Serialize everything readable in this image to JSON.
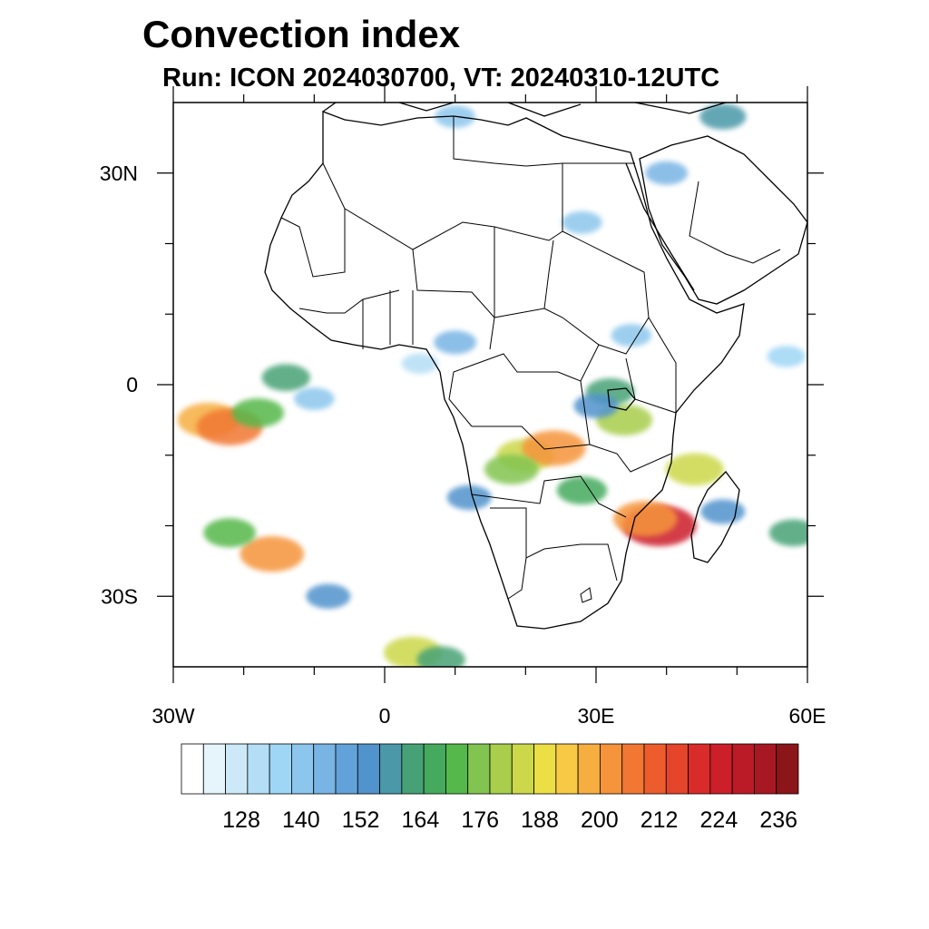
{
  "title": "Convection index",
  "subtitle": "Run: ICON 2024030700,  VT: 20240310-12UTC",
  "map": {
    "lon_range": [
      -30,
      60
    ],
    "lat_range": [
      -40,
      40
    ],
    "lon_ticks": [
      {
        "value": -30,
        "label": "30W"
      },
      {
        "value": 0,
        "label": "0"
      },
      {
        "value": 30,
        "label": "30E"
      },
      {
        "value": 60,
        "label": "60E"
      }
    ],
    "lat_ticks": [
      {
        "value": 30,
        "label": "30N"
      },
      {
        "value": 0,
        "label": "0"
      },
      {
        "value": -30,
        "label": "30S"
      }
    ],
    "minor_lon": [
      -20,
      -10,
      10,
      20,
      40,
      50
    ],
    "minor_lat": [
      20,
      10,
      -10,
      -20
    ]
  },
  "colorbar": {
    "colors": [
      "#ffffff",
      "#e6f4fc",
      "#cde9f8",
      "#b4def5",
      "#9fd6f6",
      "#8cc6ec",
      "#78b4e4",
      "#62a2da",
      "#5193cc",
      "#4a98a8",
      "#46a276",
      "#45aa5d",
      "#55b84a",
      "#82c450",
      "#a8ce4c",
      "#ccd84a",
      "#ecdf46",
      "#f7c945",
      "#f6ae41",
      "#f5943b",
      "#f17733",
      "#ec5c2d",
      "#e4452b",
      "#d92b2a",
      "#cc1f2a",
      "#bb1a27",
      "#a81823",
      "#8c1519"
    ],
    "labels": [
      "128",
      "140",
      "152",
      "164",
      "176",
      "188",
      "200",
      "212",
      "224",
      "236"
    ]
  },
  "convection_blobs": [
    {
      "lon": -25,
      "lat": -5,
      "value": 195
    },
    {
      "lon": -22,
      "lat": -6,
      "value": 205
    },
    {
      "lon": -18,
      "lat": -4,
      "value": 170
    },
    {
      "lon": -14,
      "lat": 1,
      "value": 160
    },
    {
      "lon": -10,
      "lat": -2,
      "value": 140
    },
    {
      "lon": 5,
      "lat": 3,
      "value": 130
    },
    {
      "lon": 10,
      "lat": 6,
      "value": 145
    },
    {
      "lon": 20,
      "lat": -10,
      "value": 185
    },
    {
      "lon": 24,
      "lat": -9,
      "value": 200
    },
    {
      "lon": 18,
      "lat": -12,
      "value": 175
    },
    {
      "lon": 28,
      "lat": -15,
      "value": 165
    },
    {
      "lon": 34,
      "lat": -5,
      "value": 180
    },
    {
      "lon": 32,
      "lat": -1,
      "value": 160
    },
    {
      "lon": 30,
      "lat": -3,
      "value": 150
    },
    {
      "lon": 44,
      "lat": -12,
      "value": 185
    },
    {
      "lon": 39,
      "lat": -20,
      "value": 225
    },
    {
      "lon": 37,
      "lat": -19,
      "value": 200
    },
    {
      "lon": 48,
      "lat": -18,
      "value": 150
    },
    {
      "lon": 58,
      "lat": -21,
      "value": 160
    },
    {
      "lon": -16,
      "lat": -24,
      "value": 200
    },
    {
      "lon": -22,
      "lat": -21,
      "value": 170
    },
    {
      "lon": -8,
      "lat": -30,
      "value": 150
    },
    {
      "lon": 4,
      "lat": -38,
      "value": 185
    },
    {
      "lon": 8,
      "lat": -39,
      "value": 160
    },
    {
      "lon": 40,
      "lat": 30,
      "value": 145
    },
    {
      "lon": 28,
      "lat": 23,
      "value": 140
    },
    {
      "lon": 10,
      "lat": 38,
      "value": 140
    },
    {
      "lon": 48,
      "lat": 38,
      "value": 155
    },
    {
      "lon": 57,
      "lat": 4,
      "value": 135
    },
    {
      "lon": 35,
      "lat": 7,
      "value": 140
    },
    {
      "lon": 12,
      "lat": -16,
      "value": 150
    }
  ]
}
